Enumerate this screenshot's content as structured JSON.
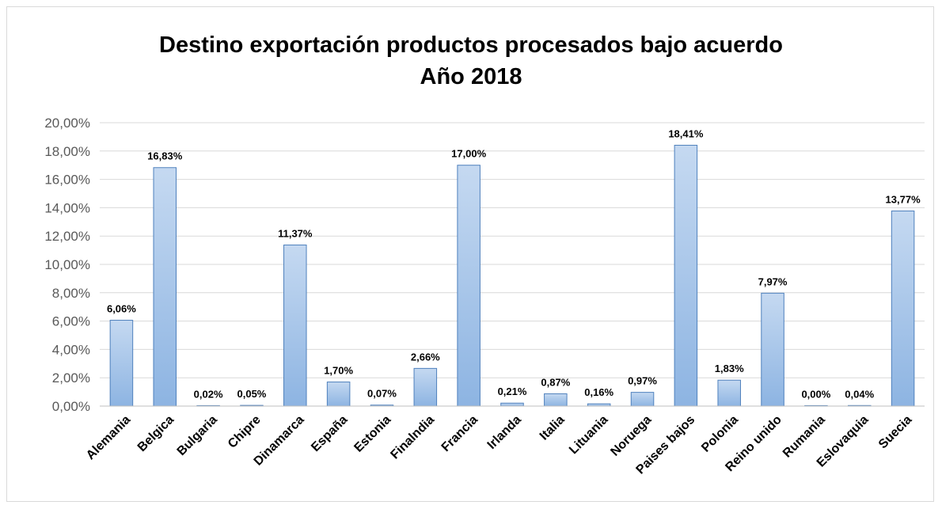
{
  "chart_data": {
    "type": "bar",
    "title_line1": "Destino exportación productos procesados bajo acuerdo",
    "title_line2": "Año 2018",
    "categories": [
      "Alemania",
      "Belgica",
      "Bulgaria",
      "Chipre",
      "Dinamarca",
      "España",
      "Estonia",
      "Finalndia",
      "Francia",
      "Irlanda",
      "Italia",
      "Lituania",
      "Noruega",
      "Paises bajos",
      "Polonia",
      "Reino unido",
      "Rumania",
      "Eslovaquia",
      "Suecia"
    ],
    "values": [
      6.06,
      16.83,
      0.02,
      0.05,
      11.37,
      1.7,
      0.07,
      2.66,
      17.0,
      0.21,
      0.87,
      0.16,
      0.97,
      18.41,
      1.83,
      7.97,
      0.0,
      0.04,
      13.77
    ],
    "data_labels": [
      "6,06%",
      "16,83%",
      "0,02%",
      "0,05%",
      "11,37%",
      "1,70%",
      "0,07%",
      "2,66%",
      "17,00%",
      "0,21%",
      "0,87%",
      "0,16%",
      "0,97%",
      "18,41%",
      "1,83%",
      "7,97%",
      "0,00%",
      "0,04%",
      "13,77%"
    ],
    "y_ticks": [
      "0,00%",
      "2,00%",
      "4,00%",
      "6,00%",
      "8,00%",
      "10,00%",
      "12,00%",
      "14,00%",
      "16,00%",
      "18,00%",
      "20,00%"
    ],
    "ylim": [
      0,
      20
    ],
    "grid": true,
    "legend": "none",
    "colors": {
      "bar_fill_top": "#c5d9f1",
      "bar_fill_bottom": "#8db4e2",
      "bar_stroke": "#4f81bd",
      "grid": "#d9d9d9"
    }
  }
}
